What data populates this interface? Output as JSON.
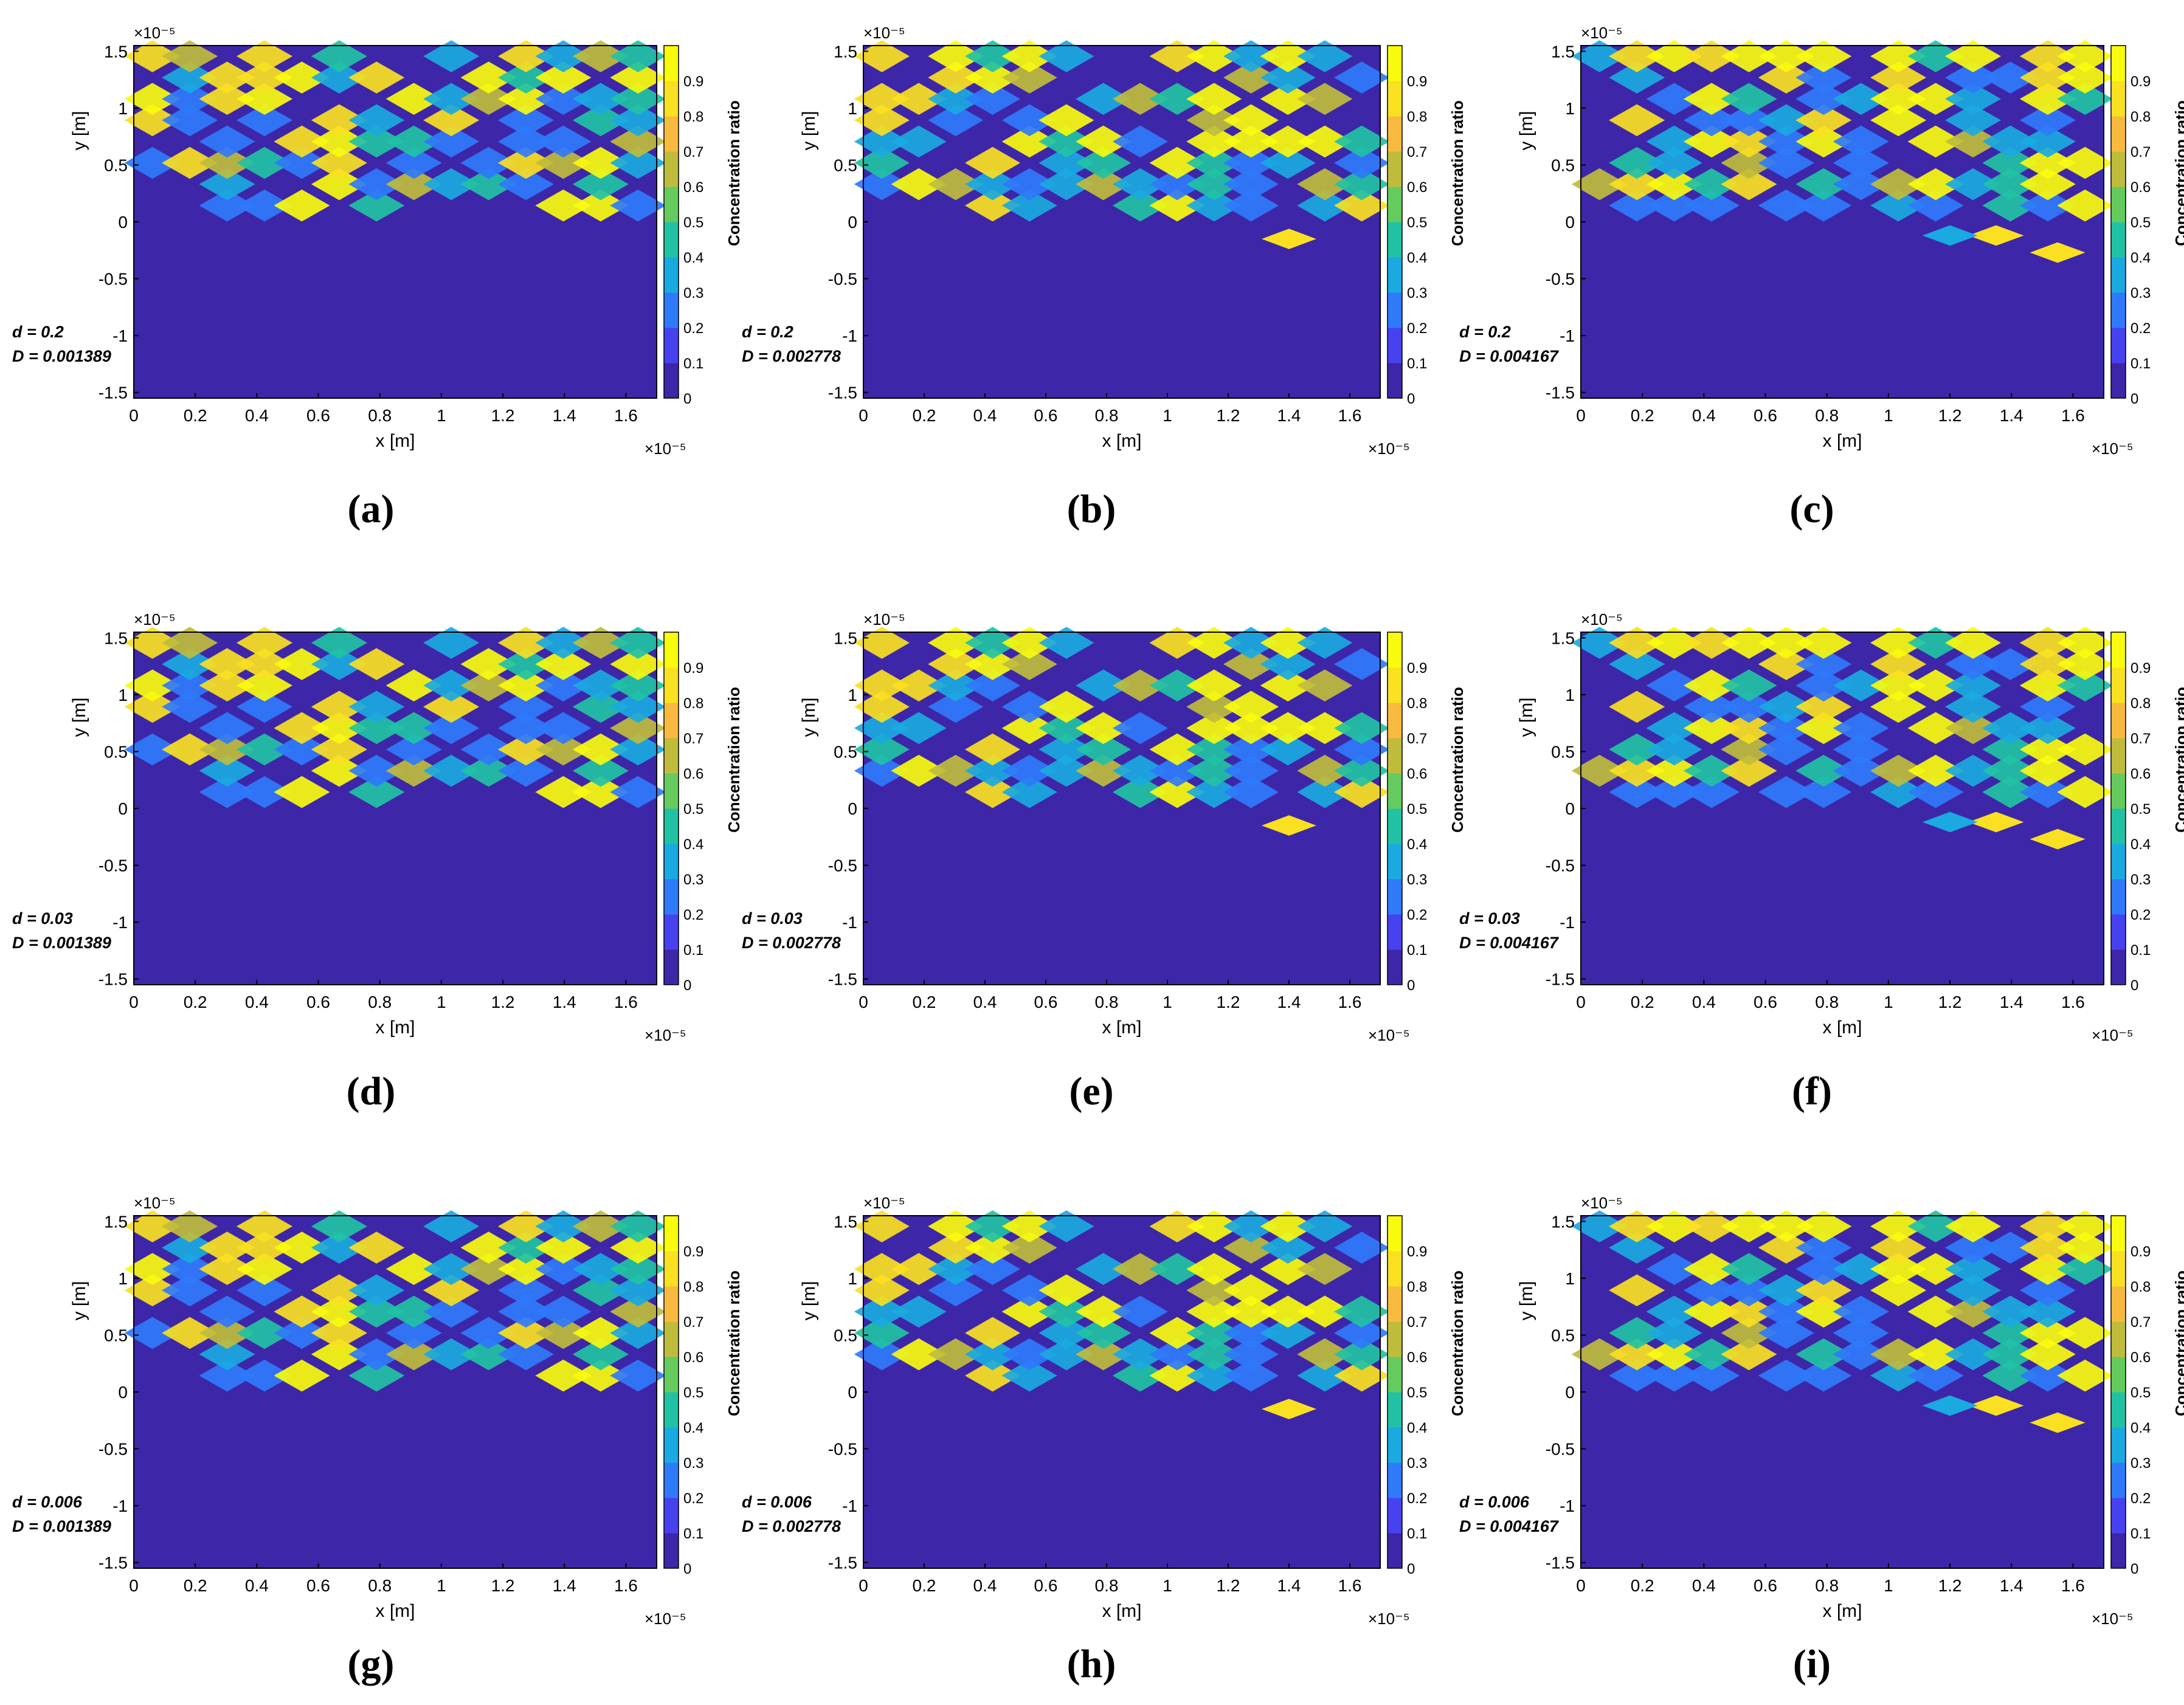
{
  "figure": {
    "panel_labels": [
      "(a)",
      "(b)",
      "(c)",
      "(d)",
      "(e)",
      "(f)",
      "(g)",
      "(h)",
      "(i)"
    ]
  },
  "colormap": [
    "#3e26a8",
    "#4742f0",
    "#2f7afb",
    "#1aa9e1",
    "#21c2a4",
    "#65cb5e",
    "#bfbc3c",
    "#f8ba3e",
    "#f9e021",
    "#f9fb0e"
  ],
  "chart_data": [
    {
      "panel": "a",
      "type": "heatmap",
      "xlabel": "x [m]",
      "ylabel": "y [m]",
      "colorbar_label": "Concentration ratio",
      "x_multiplier": "×10⁻⁵",
      "y_multiplier": "×10⁻⁵",
      "xticks": [
        "0",
        "0.2",
        "0.4",
        "0.6",
        "0.8",
        "1",
        "1.2",
        "1.4",
        "1.6"
      ],
      "yticks": [
        "-1.5",
        "-1",
        "-0.5",
        "0",
        "0.5",
        "1",
        "1.5"
      ],
      "cticks": [
        "0",
        "0.1",
        "0.2",
        "0.3",
        "0.4",
        "0.5",
        "0.6",
        "0.7",
        "0.8",
        "0.9"
      ],
      "xlim": [
        0,
        1.7
      ],
      "ylim": [
        -1.55,
        1.55
      ],
      "clim": [
        0,
        1
      ],
      "annotation": {
        "d": "d = 0.2",
        "D": "D = 0.001389"
      }
    },
    {
      "panel": "b",
      "type": "heatmap",
      "xlabel": "x [m]",
      "ylabel": "y [m]",
      "colorbar_label": "Concentration ratio",
      "x_multiplier": "×10⁻⁵",
      "y_multiplier": "×10⁻⁵",
      "xticks": [
        "0",
        "0.2",
        "0.4",
        "0.6",
        "0.8",
        "1",
        "1.2",
        "1.4",
        "1.6"
      ],
      "yticks": [
        "-1.5",
        "-1",
        "-0.5",
        "0",
        "0.5",
        "1",
        "1.5"
      ],
      "cticks": [
        "0",
        "0.1",
        "0.2",
        "0.3",
        "0.4",
        "0.5",
        "0.6",
        "0.7",
        "0.8",
        "0.9"
      ],
      "xlim": [
        0,
        1.7
      ],
      "ylim": [
        -1.55,
        1.55
      ],
      "clim": [
        0,
        1
      ],
      "annotation": {
        "d": "d = 0.2",
        "D": "D = 0.002778"
      }
    },
    {
      "panel": "c",
      "type": "heatmap",
      "xlabel": "x [m]",
      "ylabel": "y [m]",
      "colorbar_label": "Concentration ratio",
      "x_multiplier": "×10⁻⁵",
      "y_multiplier": "×10⁻⁵",
      "xticks": [
        "0",
        "0.2",
        "0.4",
        "0.6",
        "0.8",
        "1",
        "1.2",
        "1.4",
        "1.6"
      ],
      "yticks": [
        "-1.5",
        "-1",
        "-0.5",
        "0",
        "0.5",
        "1",
        "1.5"
      ],
      "cticks": [
        "0",
        "0.1",
        "0.2",
        "0.3",
        "0.4",
        "0.5",
        "0.6",
        "0.7",
        "0.8",
        "0.9"
      ],
      "xlim": [
        0,
        1.7
      ],
      "ylim": [
        -1.55,
        1.55
      ],
      "clim": [
        0,
        1
      ],
      "annotation": {
        "d": "d = 0.2",
        "D": "D = 0.004167"
      }
    },
    {
      "panel": "d",
      "type": "heatmap",
      "xlabel": "x [m]",
      "ylabel": "y [m]",
      "colorbar_label": "Concentration ratio",
      "x_multiplier": "×10⁻⁵",
      "y_multiplier": "×10⁻⁵",
      "xticks": [
        "0",
        "0.2",
        "0.4",
        "0.6",
        "0.8",
        "1",
        "1.2",
        "1.4",
        "1.6"
      ],
      "yticks": [
        "-1.5",
        "-1",
        "-0.5",
        "0",
        "0.5",
        "1",
        "1.5"
      ],
      "cticks": [
        "0",
        "0.1",
        "0.2",
        "0.3",
        "0.4",
        "0.5",
        "0.6",
        "0.7",
        "0.8",
        "0.9"
      ],
      "xlim": [
        0,
        1.7
      ],
      "ylim": [
        -1.55,
        1.55
      ],
      "clim": [
        0,
        1
      ],
      "annotation": {
        "d": "d = 0.03",
        "D": "D = 0.001389"
      }
    },
    {
      "panel": "e",
      "type": "heatmap",
      "xlabel": "x [m]",
      "ylabel": "y [m]",
      "colorbar_label": "Concentration ratio",
      "x_multiplier": "×10⁻⁵",
      "y_multiplier": "×10⁻⁵",
      "xticks": [
        "0",
        "0.2",
        "0.4",
        "0.6",
        "0.8",
        "1",
        "1.2",
        "1.4",
        "1.6"
      ],
      "yticks": [
        "-1.5",
        "-1",
        "-0.5",
        "0",
        "0.5",
        "1",
        "1.5"
      ],
      "cticks": [
        "0",
        "0.1",
        "0.2",
        "0.3",
        "0.4",
        "0.5",
        "0.6",
        "0.7",
        "0.8",
        "0.9"
      ],
      "xlim": [
        0,
        1.7
      ],
      "ylim": [
        -1.55,
        1.55
      ],
      "clim": [
        0,
        1
      ],
      "annotation": {
        "d": "d = 0.03",
        "D": "D = 0.002778"
      }
    },
    {
      "panel": "f",
      "type": "heatmap",
      "xlabel": "x [m]",
      "ylabel": "y [m]",
      "colorbar_label": "Concentration ratio",
      "x_multiplier": "×10⁻⁵",
      "y_multiplier": "×10⁻⁵",
      "xticks": [
        "0",
        "0.2",
        "0.4",
        "0.6",
        "0.8",
        "1",
        "1.2",
        "1.4",
        "1.6"
      ],
      "yticks": [
        "-1.5",
        "-1",
        "-0.5",
        "0",
        "0.5",
        "1",
        "1.5"
      ],
      "cticks": [
        "0",
        "0.1",
        "0.2",
        "0.3",
        "0.4",
        "0.5",
        "0.6",
        "0.7",
        "0.8",
        "0.9"
      ],
      "xlim": [
        0,
        1.7
      ],
      "ylim": [
        -1.55,
        1.55
      ],
      "clim": [
        0,
        1
      ],
      "annotation": {
        "d": "d = 0.03",
        "D": "D = 0.004167"
      }
    },
    {
      "panel": "g",
      "type": "heatmap",
      "xlabel": "x [m]",
      "ylabel": "y [m]",
      "colorbar_label": "Concentration ratio",
      "x_multiplier": "×10⁻⁵",
      "y_multiplier": "×10⁻⁵",
      "xticks": [
        "0",
        "0.2",
        "0.4",
        "0.6",
        "0.8",
        "1",
        "1.2",
        "1.4",
        "1.6"
      ],
      "yticks": [
        "-1.5",
        "-1",
        "-0.5",
        "0",
        "0.5",
        "1",
        "1.5"
      ],
      "cticks": [
        "0",
        "0.1",
        "0.2",
        "0.3",
        "0.4",
        "0.5",
        "0.6",
        "0.7",
        "0.8",
        "0.9"
      ],
      "xlim": [
        0,
        1.7
      ],
      "ylim": [
        -1.55,
        1.55
      ],
      "clim": [
        0,
        1
      ],
      "annotation": {
        "d": "d = 0.006",
        "D": "D = 0.001389"
      }
    },
    {
      "panel": "h",
      "type": "heatmap",
      "xlabel": "x [m]",
      "ylabel": "y [m]",
      "colorbar_label": "Concentration ratio",
      "x_multiplier": "×10⁻⁵",
      "y_multiplier": "×10⁻⁵",
      "xticks": [
        "0",
        "0.2",
        "0.4",
        "0.6",
        "0.8",
        "1",
        "1.2",
        "1.4",
        "1.6"
      ],
      "yticks": [
        "-1.5",
        "-1",
        "-0.5",
        "0",
        "0.5",
        "1",
        "1.5"
      ],
      "cticks": [
        "0",
        "0.1",
        "0.2",
        "0.3",
        "0.4",
        "0.5",
        "0.6",
        "0.7",
        "0.8",
        "0.9"
      ],
      "xlim": [
        0,
        1.7
      ],
      "ylim": [
        -1.55,
        1.55
      ],
      "clim": [
        0,
        1
      ],
      "annotation": {
        "d": "d = 0.006",
        "D": "D = 0.002778"
      }
    },
    {
      "panel": "i",
      "type": "heatmap",
      "xlabel": "x [m]",
      "ylabel": "y [m]",
      "colorbar_label": "Concentration ratio",
      "x_multiplier": "×10⁻⁵",
      "y_multiplier": "×10⁻⁵",
      "xticks": [
        "0",
        "0.2",
        "0.4",
        "0.6",
        "0.8",
        "1",
        "1.2",
        "1.4",
        "1.6"
      ],
      "yticks": [
        "-1.5",
        "-1",
        "-0.5",
        "0",
        "0.5",
        "1",
        "1.5"
      ],
      "cticks": [
        "0",
        "0.1",
        "0.2",
        "0.3",
        "0.4",
        "0.5",
        "0.6",
        "0.7",
        "0.8",
        "0.9"
      ],
      "xlim": [
        0,
        1.7
      ],
      "ylim": [
        -1.55,
        1.55
      ],
      "clim": [
        0,
        1
      ],
      "annotation": {
        "d": "d = 0.006",
        "D": "D = 0.004167"
      }
    }
  ]
}
